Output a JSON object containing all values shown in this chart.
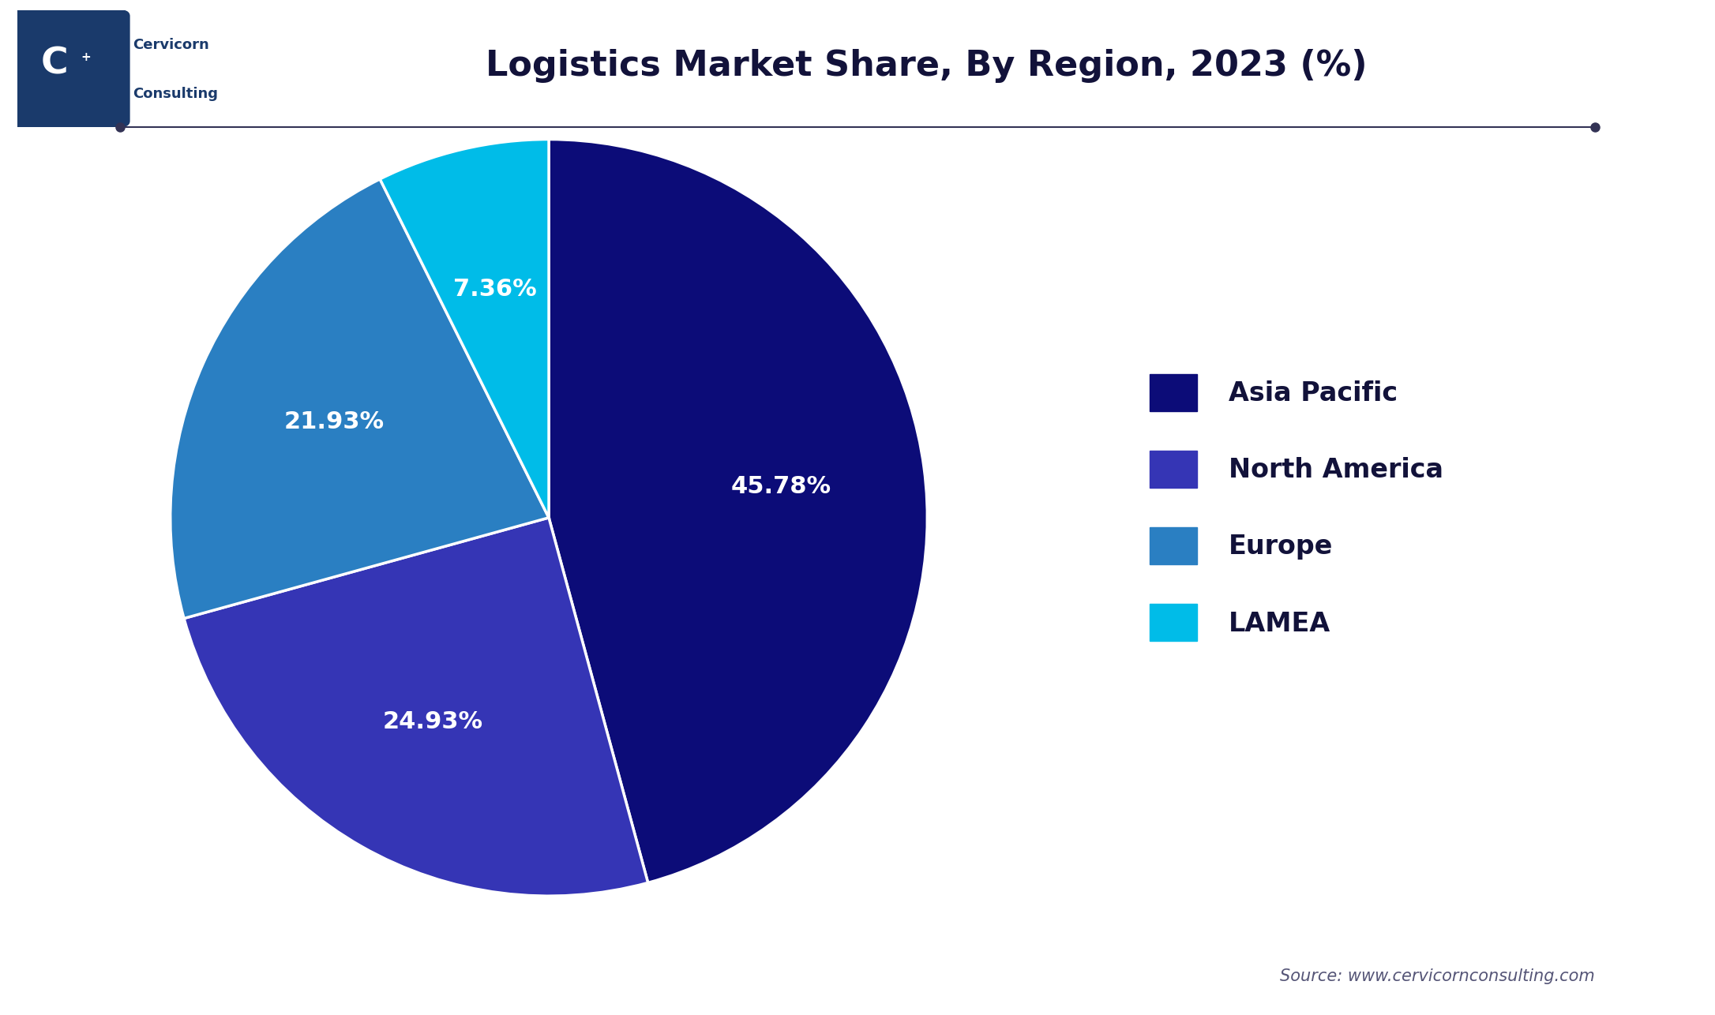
{
  "title": "Logistics Market Share, By Region, 2023 (%)",
  "values": [
    45.78,
    24.93,
    21.93,
    7.36
  ],
  "labels": [
    "Asia Pacific",
    "North America",
    "Europe",
    "LAMEA"
  ],
  "pct_labels": [
    "45.78%",
    "24.93%",
    "21.93%",
    "7.36%"
  ],
  "colors": [
    "#0c0c78",
    "#3535b5",
    "#2a7fc2",
    "#00bce8"
  ],
  "startangle": 90,
  "source_text": "Source: www.cervicornconsulting.com",
  "background_color": "#ffffff",
  "title_color": "#12123a",
  "legend_text_color": "#12123a",
  "title_fontsize": 32,
  "legend_fontsize": 24,
  "pct_fontsize": 22,
  "source_fontsize": 15,
  "line_color": "#333355",
  "logo_bg_color": "#1a3a6b",
  "logo_text_color": "#ffffff",
  "company_name_color": "#1a3a6b"
}
